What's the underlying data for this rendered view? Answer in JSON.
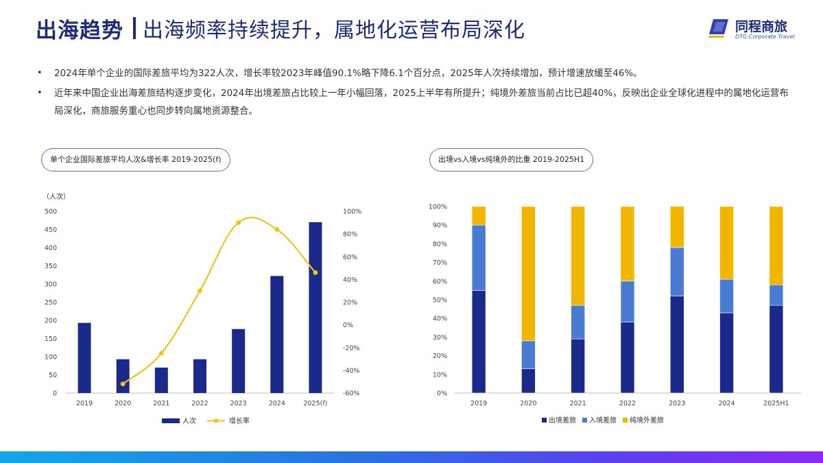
{
  "header": {
    "title_bold": "出海趋势",
    "title_sub": "出海频率持续提升，属地化运营布局深化"
  },
  "logo": {
    "name": "同程商旅",
    "en": "DTG Corporate Travel",
    "icon": "logo-mark-icon"
  },
  "bullets": [
    "2024年单个企业的国际差旅平均为322人次，增长率较2023年峰值90.1%略下降6.1个百分点，2025年人次持续增加，预计增速放缓至46%。",
    "近年来中国企业出海差旅结构逐步变化，2024年出境差旅占比较上一年小幅回落，2025上半年有所提升；纯境外差旅当前占比已超40%，反映出企业全球化进程中的属地化运营布局深化，商旅服务重心也同步转向属地资源整合。"
  ],
  "colors": {
    "navy": "#1e2a7a",
    "bar": "#1b2a8a",
    "blue": "#4a7bd4",
    "yellow": "#f2b600",
    "line": "#f2c418"
  },
  "chart_data": [
    {
      "type": "bar",
      "title": "单个企业国际差旅平均人次&增长率 2019-2025(f)",
      "unit_label": "（人次）",
      "categories": [
        "2019",
        "2020",
        "2021",
        "2022",
        "2023",
        "2024",
        "2025(f)"
      ],
      "series": [
        {
          "name": "人次",
          "type": "bar",
          "axis": "left",
          "values": [
            193,
            93,
            70,
            93,
            176,
            322,
            470
          ]
        },
        {
          "name": "增长率",
          "type": "line",
          "axis": "right",
          "values": [
            null,
            -52,
            -25,
            30,
            90,
            84,
            46
          ]
        }
      ],
      "ylim_left": [
        0,
        500
      ],
      "yticks_left": [
        "0",
        "50",
        "100",
        "150",
        "200",
        "250",
        "300",
        "350",
        "400",
        "450",
        "500"
      ],
      "ylim_right": [
        -60,
        100
      ],
      "yticks_right": [
        "-60%",
        "-40%",
        "-20%",
        "0%",
        "20%",
        "40%",
        "60%",
        "80%",
        "100%"
      ],
      "legend_position": "bottom"
    },
    {
      "type": "bar",
      "stacked": true,
      "title": "出境vs入境vs纯境外的比重 2019-2025H1",
      "categories": [
        "2019",
        "2020",
        "2021",
        "2022",
        "2023",
        "2024",
        "2025H1"
      ],
      "series": [
        {
          "name": "出境差旅",
          "values": [
            55,
            13,
            29,
            38,
            52,
            43,
            47
          ]
        },
        {
          "name": "入境差旅",
          "values": [
            35,
            15,
            18,
            22,
            26,
            18,
            11
          ]
        },
        {
          "name": "纯境外差旅",
          "values": [
            10,
            72,
            53,
            40,
            22,
            39,
            42
          ]
        }
      ],
      "ylim": [
        0,
        100
      ],
      "yticks": [
        "0%",
        "10%",
        "20%",
        "30%",
        "40%",
        "50%",
        "60%",
        "70%",
        "80%",
        "90%",
        "100%"
      ],
      "legend_position": "bottom"
    }
  ]
}
